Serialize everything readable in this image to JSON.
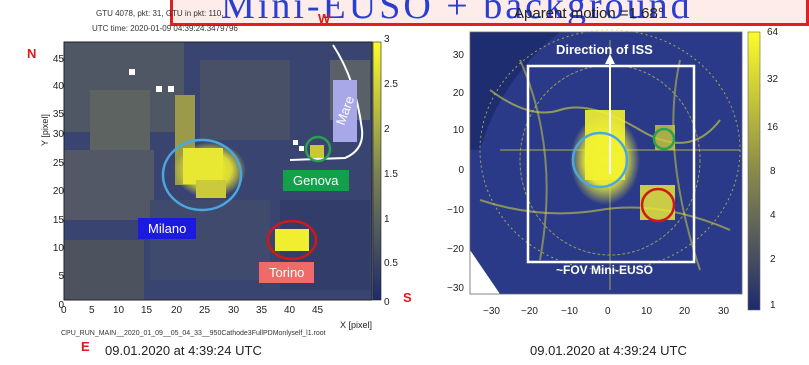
{
  "banner": {
    "title": "Mini-EUSO + background",
    "motion_text": "Aparent motion =1.68°"
  },
  "left_panel": {
    "header_line1": "GTU 4078, pkt: 31, GTU in pkt: 110,",
    "header_line2": "UTC time: 2020-01-09 04:39:24.3479796",
    "compass": {
      "north": "N",
      "west": "W",
      "south": "S",
      "east": "E"
    },
    "y_label": "Y [pixel]",
    "x_label": "X [pixel]",
    "y_ticks": [
      "0",
      "5",
      "10",
      "15",
      "20",
      "25",
      "30",
      "35",
      "40",
      "45"
    ],
    "x_ticks": [
      "0",
      "5",
      "10",
      "15",
      "20",
      "25",
      "30",
      "35",
      "40",
      "45"
    ],
    "colorbar_ticks": [
      "3",
      "2.5",
      "2",
      "1.5",
      "1",
      "0.5",
      "0"
    ],
    "mare_label": "Mare",
    "cities": {
      "milano": "Milano",
      "genova": "Genova",
      "torino": "Torino"
    },
    "filename": "CPU_RUN_MAIN__2020_01_09__05_04_33__950Cathode3FullPDMonlyself_l1.root",
    "timestamp": "09.01.2020 at 4:39:24 UTC"
  },
  "right_panel": {
    "direction_label": "Direction of ISS",
    "fov_label": "~FOV Mini-EUSO",
    "y_ticks": [
      "30",
      "20",
      "10",
      "0",
      "−10",
      "−20",
      "−30"
    ],
    "x_ticks": [
      "−30",
      "−20",
      "−10",
      "0",
      "10",
      "20",
      "30"
    ],
    "colorbar_ticks": [
      "64",
      "32",
      "16",
      "8",
      "4",
      "2",
      "1"
    ],
    "timestamp": "09.01.2020 at 4:39:24 UTC"
  },
  "colors": {
    "banner_border": "#e02020",
    "banner_title": "#2a3fd0",
    "milano_box": "#1a1ae0",
    "genova_box": "#12a04a",
    "torino_box": "#f06a6a",
    "mare_box": "#a8a8e8",
    "milano_circle": "#4aa8e0",
    "genova_circle": "#2aa050",
    "torino_circle": "#d01818"
  }
}
